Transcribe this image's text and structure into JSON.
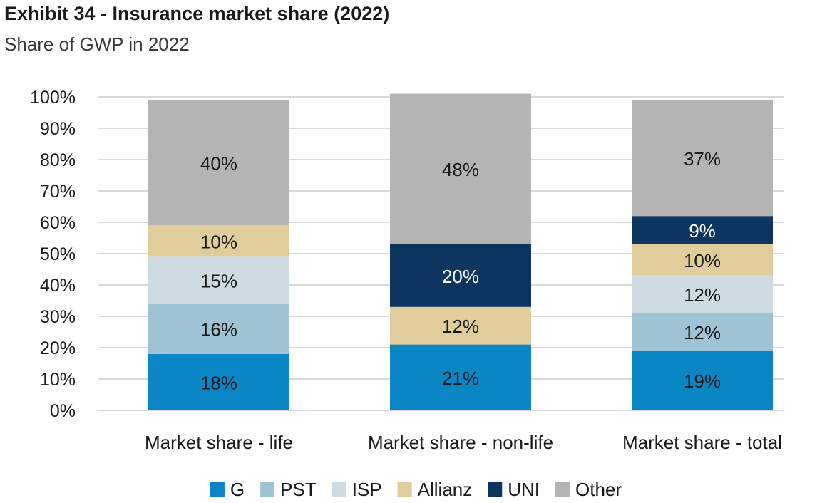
{
  "title": "Exhibit 34 - Insurance market share (2022)",
  "subtitle": "Share of GWP in 2022",
  "chart_data": {
    "type": "bar",
    "stacked": true,
    "categories": [
      "Market share - life",
      "Market share - non-life",
      "Market share - total"
    ],
    "series": [
      {
        "name": "G",
        "color": "#0a86c4",
        "values": [
          18,
          21,
          19
        ],
        "labels": [
          "18%",
          "21%",
          "19%"
        ]
      },
      {
        "name": "PST",
        "color": "#9dc3d5",
        "values": [
          16,
          0,
          12
        ],
        "labels": [
          "16%",
          "",
          "12%"
        ]
      },
      {
        "name": "ISP",
        "color": "#cedbe2",
        "values": [
          15,
          0,
          12
        ],
        "labels": [
          "15%",
          "",
          "12%"
        ]
      },
      {
        "name": "Allianz",
        "color": "#e1cc9b",
        "values": [
          10,
          12,
          10
        ],
        "labels": [
          "10%",
          "12%",
          "10%"
        ]
      },
      {
        "name": "UNI",
        "color": "#0c355f",
        "values": [
          0,
          20,
          9
        ],
        "labels": [
          "",
          "20%",
          "9%"
        ]
      },
      {
        "name": "Other",
        "color": "#b4b4b4",
        "values": [
          40,
          48,
          37
        ],
        "labels": [
          "40%",
          "48%",
          "37%"
        ]
      }
    ],
    "y_ticks": [
      "0%",
      "10%",
      "20%",
      "30%",
      "40%",
      "50%",
      "60%",
      "70%",
      "80%",
      "90%",
      "100%"
    ],
    "ylim": [
      0,
      100
    ],
    "grid": true,
    "legend_position": "bottom"
  }
}
